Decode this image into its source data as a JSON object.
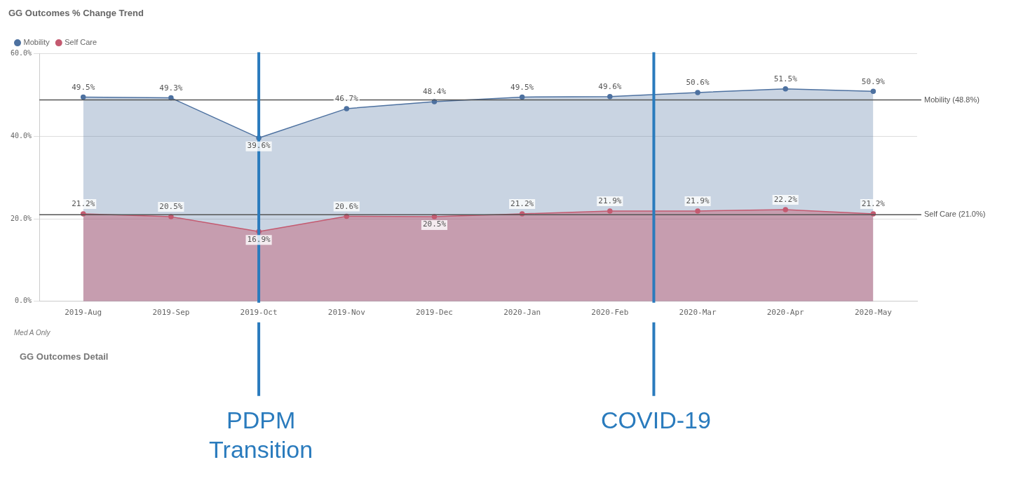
{
  "chart_data": {
    "type": "area",
    "title": "GG Outcomes % Change Trend",
    "categories": [
      "2019-Aug",
      "2019-Sep",
      "2019-Oct",
      "2019-Nov",
      "2019-Dec",
      "2020-Jan",
      "2020-Feb",
      "2020-Mar",
      "2020-Apr",
      "2020-May"
    ],
    "series": [
      {
        "name": "Mobility",
        "color": "#4d71a0",
        "values": [
          49.5,
          49.3,
          39.6,
          46.7,
          48.4,
          49.5,
          49.6,
          50.6,
          51.5,
          50.9
        ],
        "value_labels": [
          "49.5%",
          "49.3%",
          "39.6%",
          "46.7%",
          "48.4%",
          "49.5%",
          "49.6%",
          "50.6%",
          "51.5%",
          "50.9%"
        ]
      },
      {
        "name": "Self Care",
        "color": "#c45a70",
        "values": [
          21.2,
          20.5,
          16.9,
          20.6,
          20.5,
          21.2,
          21.9,
          21.9,
          22.2,
          21.2
        ],
        "value_labels": [
          "21.2%",
          "20.5%",
          "16.9%",
          "20.6%",
          "20.5%",
          "21.2%",
          "21.9%",
          "21.9%",
          "22.2%",
          "21.2%"
        ]
      }
    ],
    "ylim": [
      0,
      60
    ],
    "yticks": [
      {
        "value": 0,
        "label": "0.0%"
      },
      {
        "value": 20,
        "label": "20.0%"
      },
      {
        "value": 40,
        "label": "40.0%"
      },
      {
        "value": 60,
        "label": "60.0%"
      }
    ],
    "grid": "y",
    "legend": "top left",
    "marker": "circle",
    "ref_lines": [
      {
        "axis": "y",
        "value": 48.8,
        "label": "Mobility (48.8%)",
        "color": "#555555"
      },
      {
        "axis": "y",
        "value": 21.0,
        "label": "Self Care (21.0%)",
        "color": "#555555"
      },
      {
        "axis": "x",
        "value": "2019-Oct",
        "label": "PDPM Transition",
        "color": "#2a7bbd"
      }
    ],
    "annotations": [
      "Med A Only",
      "GG Outcomes Detail",
      "COVID-19"
    ]
  }
}
